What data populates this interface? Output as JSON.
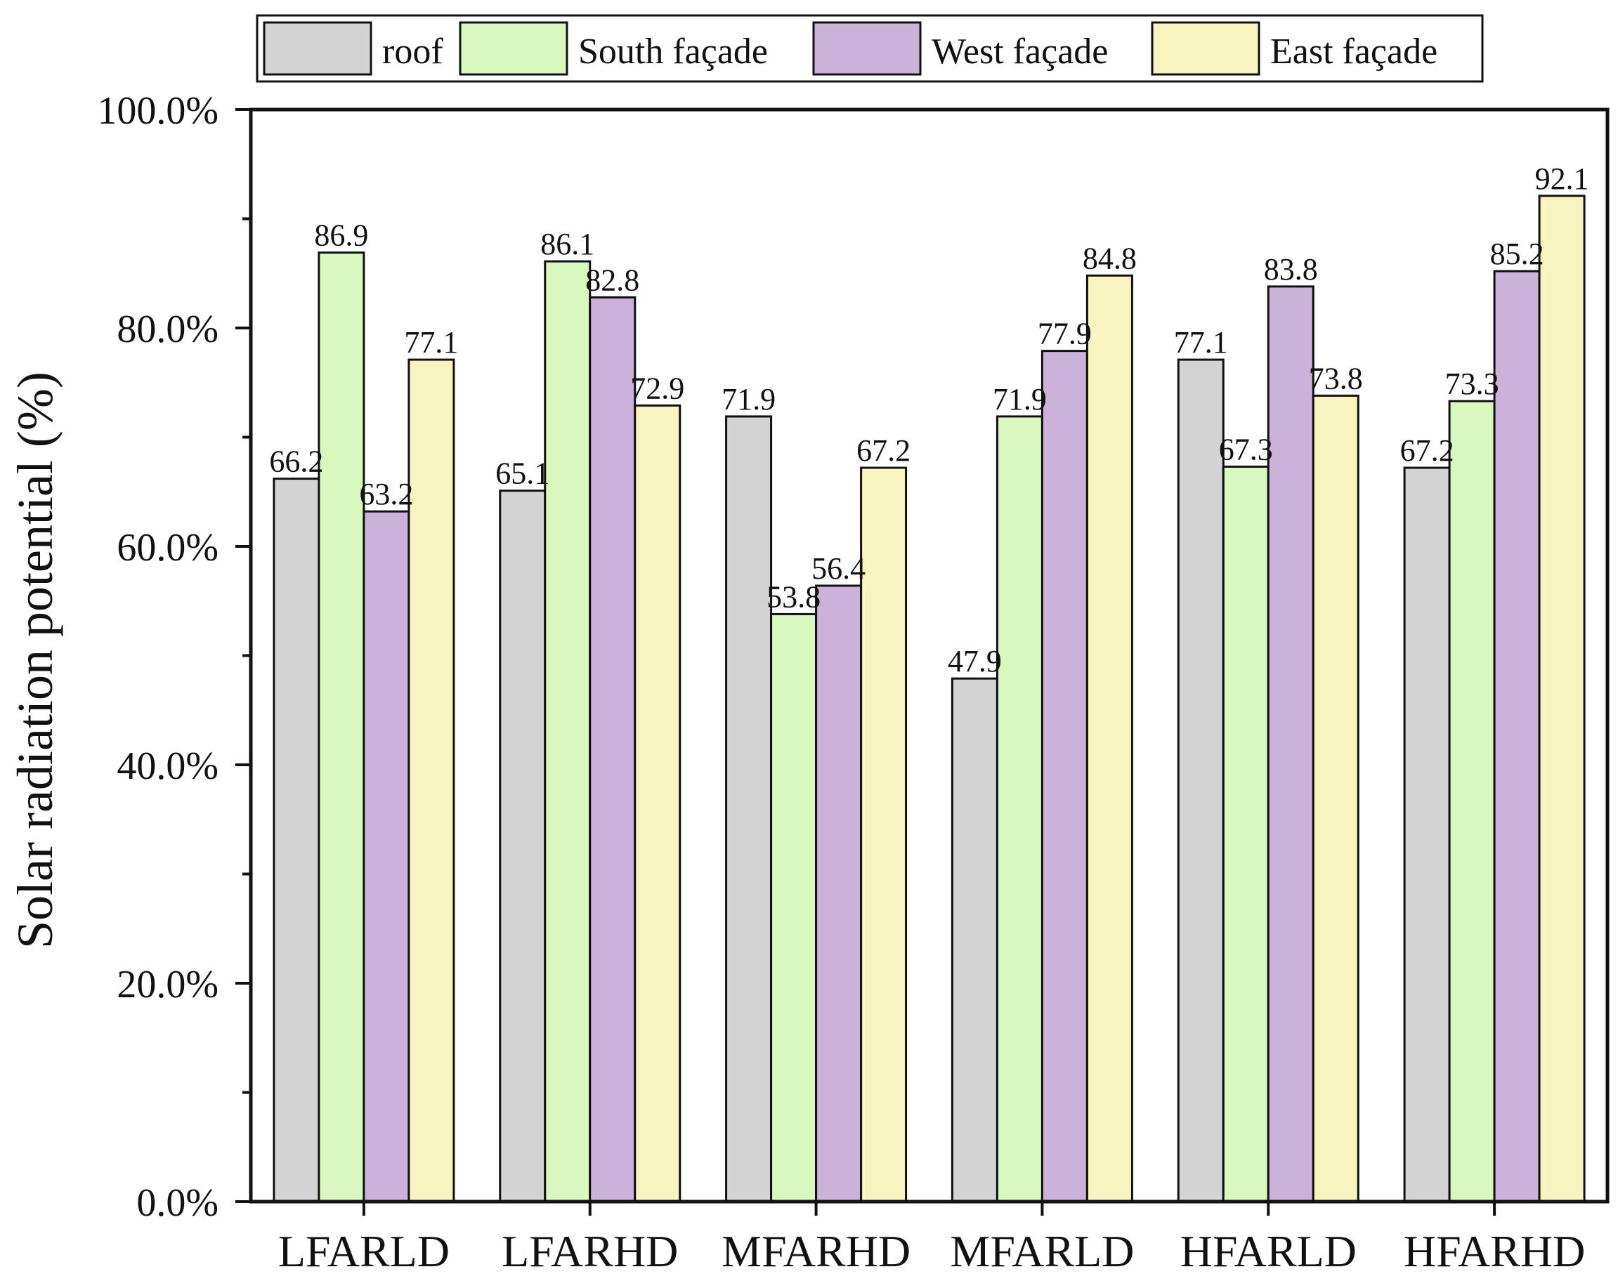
{
  "chart_data": {
    "type": "bar",
    "title": "",
    "xlabel": "",
    "ylabel": "Solar radiation potential (%)",
    "ylim": [
      0,
      100
    ],
    "y_ticks": [
      "0.0%",
      "20.0%",
      "40.0%",
      "60.0%",
      "80.0%",
      "100.0%"
    ],
    "y_tick_values": [
      0,
      20,
      40,
      60,
      80,
      100
    ],
    "y_minor_tick_values": [
      10,
      30,
      50,
      70,
      90
    ],
    "categories": [
      "LFARLD",
      "LFARHD",
      "MFARHD",
      "MFARLD",
      "HFARLD",
      "HFARHD"
    ],
    "series": [
      {
        "name": "roof",
        "color": "#d3d3d3",
        "values": [
          66.2,
          65.1,
          71.9,
          47.9,
          77.1,
          67.2
        ],
        "labels": [
          "66.2",
          "65.1",
          "71.9",
          "47.9",
          "77.1",
          "67.2"
        ]
      },
      {
        "name": "South façade",
        "color": "#d9f8c0",
        "values": [
          86.9,
          86.1,
          53.8,
          71.9,
          67.3,
          73.3
        ],
        "labels": [
          "86.9",
          "86.1",
          "53.8",
          "71.9",
          "67.3",
          "73.3"
        ]
      },
      {
        "name": "West façade",
        "color": "#cbb2da",
        "values": [
          63.2,
          82.8,
          56.4,
          77.9,
          83.8,
          85.2
        ],
        "labels": [
          "63.2",
          "82.8",
          "56.4",
          "77.9",
          "83.8",
          "85.2"
        ]
      },
      {
        "name": "East façade",
        "color": "#f8f4bf",
        "values": [
          77.1,
          72.9,
          67.2,
          84.8,
          73.8,
          92.1
        ],
        "labels": [
          "77.1",
          "72.9",
          "67.2",
          "84.8",
          "73.8",
          "92.1"
        ]
      }
    ],
    "legend_position": "top",
    "grid": false
  }
}
